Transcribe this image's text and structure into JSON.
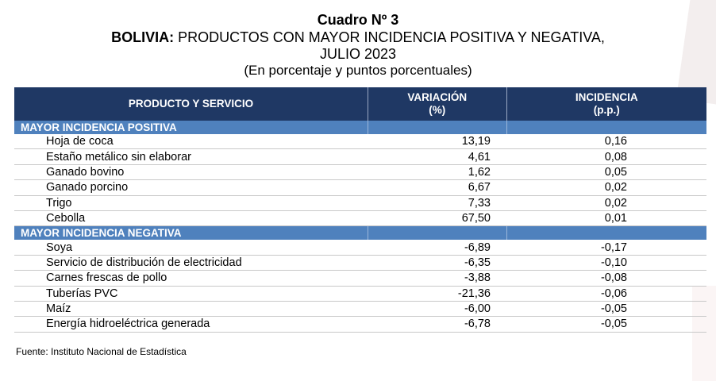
{
  "title": {
    "number": "Cuadro Nº 3",
    "country": "BOLIVIA:",
    "line2_rest": " PRODUCTOS CON MAYOR INCIDENCIA POSITIVA Y NEGATIVA,",
    "line3": "JULIO 2023",
    "line4": "(En porcentaje y puntos porcentuales)"
  },
  "table": {
    "headers": {
      "product": "PRODUCTO Y SERVICIO",
      "variation": "VARIACIÓN",
      "variation_unit": "(%)",
      "incidence": "INCIDENCIA",
      "incidence_unit": "(p.p.)"
    },
    "positive_label": "MAYOR INCIDENCIA POSITIVA",
    "positive": [
      {
        "name": "Hoja de coca",
        "variation": "13,19",
        "incidence": "0,16"
      },
      {
        "name": "Estaño metálico sin elaborar",
        "variation": "4,61",
        "incidence": "0,08"
      },
      {
        "name": "Ganado bovino",
        "variation": "1,62",
        "incidence": "0,05"
      },
      {
        "name": "Ganado porcino",
        "variation": "6,67",
        "incidence": "0,02"
      },
      {
        "name": "Trigo",
        "variation": "7,33",
        "incidence": "0,02"
      },
      {
        "name": "Cebolla",
        "variation": "67,50",
        "incidence": "0,01"
      }
    ],
    "negative_label": "MAYOR INCIDENCIA NEGATIVA",
    "negative": [
      {
        "name": "Soya",
        "variation": "-6,89",
        "incidence": "-0,17"
      },
      {
        "name": "Servicio de distribución de electricidad",
        "variation": "-6,35",
        "incidence": "-0,10"
      },
      {
        "name": "Carnes frescas de pollo",
        "variation": "-3,88",
        "incidence": "-0,08"
      },
      {
        "name": "Tuberías PVC",
        "variation": "-21,36",
        "incidence": "-0,06"
      },
      {
        "name": "Maíz",
        "variation": "-6,00",
        "incidence": "-0,05"
      },
      {
        "name": "Energía hidroeléctrica generada",
        "variation": "-6,78",
        "incidence": "-0,05"
      }
    ]
  },
  "source": "Fuente: Instituto Nacional de Estadística",
  "colors": {
    "header_bg": "#1f3864",
    "section_bg": "#4f81bd"
  }
}
